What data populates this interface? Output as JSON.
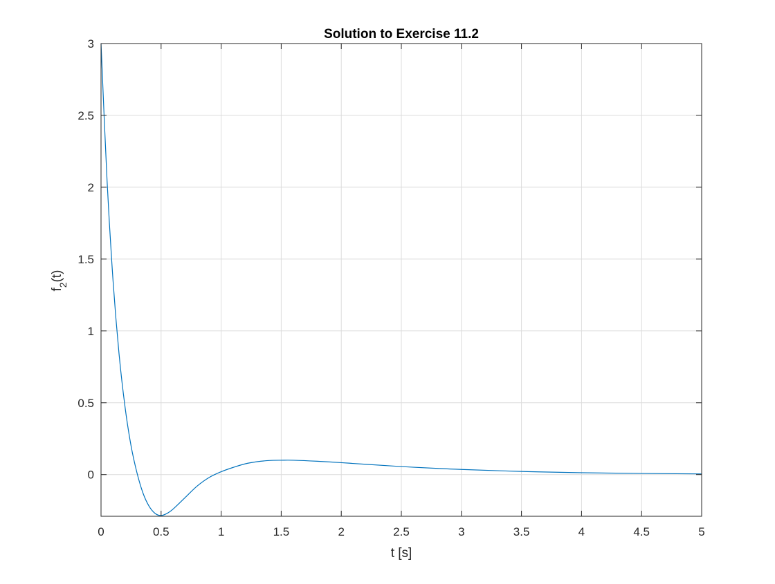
{
  "chart_data": {
    "type": "line",
    "title": "Solution to Exercise 11.2",
    "xlabel": "t [s]",
    "ylabel_main": "f",
    "ylabel_sub": "2",
    "ylabel_tail": "(t)",
    "xlim": [
      0,
      5
    ],
    "ylim": [
      -0.29,
      3
    ],
    "grid": true,
    "x_ticks": [
      0,
      0.5,
      1,
      1.5,
      2,
      2.5,
      3,
      3.5,
      4,
      4.5,
      5
    ],
    "x_tick_labels": [
      "0",
      "0.5",
      "1",
      "1.5",
      "2",
      "2.5",
      "3",
      "3.5",
      "4",
      "4.5",
      "5"
    ],
    "y_ticks": [
      0,
      0.5,
      1,
      1.5,
      2,
      2.5,
      3
    ],
    "y_tick_labels": [
      "0",
      "0.5",
      "1",
      "1.5",
      "2",
      "2.5",
      "3"
    ],
    "series": [
      {
        "color": "#0072BD",
        "x": [
          0,
          0.05,
          0.1,
          0.15,
          0.2,
          0.25,
          0.3,
          0.35,
          0.4,
          0.45,
          0.5,
          0.55,
          0.6,
          0.7,
          0.8,
          0.9,
          1.0,
          1.1,
          1.2,
          1.3,
          1.4,
          1.5,
          1.6,
          1.8,
          2.0,
          2.2,
          2.5,
          2.8,
          3.0,
          3.5,
          4.0,
          4.5,
          5.0
        ],
        "y": [
          3.0,
          2.05,
          1.35,
          0.84,
          0.47,
          0.2,
          0.01,
          -0.13,
          -0.22,
          -0.27,
          -0.285,
          -0.27,
          -0.24,
          -0.16,
          -0.08,
          -0.02,
          0.02,
          0.05,
          0.075,
          0.09,
          0.098,
          0.1,
          0.1,
          0.093,
          0.083,
          0.072,
          0.056,
          0.043,
          0.036,
          0.022,
          0.013,
          0.008,
          0.005
        ]
      }
    ]
  }
}
